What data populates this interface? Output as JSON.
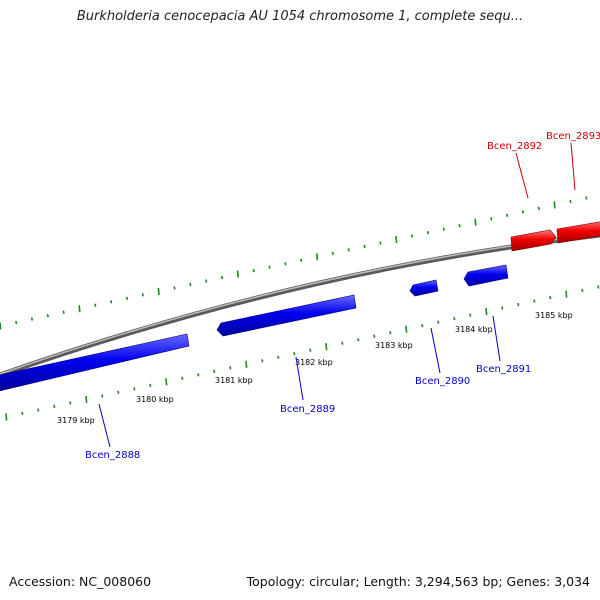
{
  "title": "Burkholderia cenocepacia AU 1054 chromosome 1, complete sequ...",
  "footer": {
    "accession": "Accession: NC_008060",
    "summary": "Topology: circular; Length: 3,294,563 bp; Genes: 3,034"
  },
  "colors": {
    "forward_gene": "#e00000",
    "reverse_gene": "#0000e0",
    "tick": "#1a8a1a",
    "backbone": "#808080"
  },
  "kbp_labels": [
    "3179 kbp",
    "3180 kbp",
    "3181 kbp",
    "3182 kbp",
    "3183 kbp",
    "3184 kbp",
    "3185 kbp"
  ],
  "genes": [
    {
      "name": "Bcen_2888",
      "strand": "reverse"
    },
    {
      "name": "Bcen_2889",
      "strand": "reverse"
    },
    {
      "name": "Bcen_2890",
      "strand": "reverse"
    },
    {
      "name": "Bcen_2891",
      "strand": "reverse"
    },
    {
      "name": "Bcen_2892",
      "strand": "forward"
    },
    {
      "name": "Bcen_2893",
      "strand": "forward"
    }
  ]
}
